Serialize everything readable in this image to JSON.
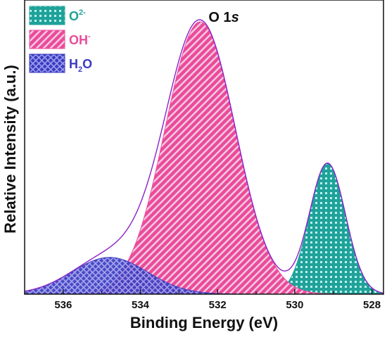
{
  "chart_data": {
    "type": "area",
    "title": "O 1",
    "title_italic": "s",
    "xlabel": "Binding Energy (eV)",
    "ylabel": "Relative Intensity (a.u.)",
    "xlim": [
      537.0,
      527.7
    ],
    "x_reversed": true,
    "ylim": [
      0,
      1.08
    ],
    "x_ticks": [
      536,
      534,
      532,
      530,
      528
    ],
    "x_tick_labels": [
      "536",
      "534",
      "532",
      "530",
      "528"
    ],
    "legend_position": "top-left",
    "series": [
      {
        "name_main": "O",
        "name_sup": "2-",
        "name_sub": "",
        "color": "#1fa29a",
        "pattern": "check",
        "peak": {
          "center": 529.15,
          "height": 0.48,
          "fwhm": 1.1
        },
        "points": [
          [
            531.5,
            0.0
          ],
          [
            530.5,
            0.04
          ],
          [
            530.0,
            0.13
          ],
          [
            529.5,
            0.33
          ],
          [
            529.15,
            0.48
          ],
          [
            528.8,
            0.33
          ],
          [
            528.3,
            0.13
          ],
          [
            527.8,
            0.03
          ]
        ]
      },
      {
        "name_main": "OH",
        "name_sup": "-",
        "name_sub": "",
        "color": "#ea4b9c",
        "pattern": "diagonal",
        "peak": {
          "center": 532.45,
          "height": 1.0,
          "fwhm": 2.15
        },
        "points": [
          [
            534.8,
            0.06
          ],
          [
            534.0,
            0.36
          ],
          [
            533.4,
            0.72
          ],
          [
            532.45,
            1.0
          ],
          [
            531.5,
            0.72
          ],
          [
            530.9,
            0.36
          ],
          [
            530.1,
            0.06
          ]
        ]
      },
      {
        "name_main": "H",
        "name_sup": "",
        "name_sub": "2",
        "name_tail": "O",
        "color": "#3b3bc0",
        "pattern": "crosshatch",
        "peak": {
          "center": 534.8,
          "height": 0.135,
          "fwhm": 2.3
        },
        "points": [
          [
            537.0,
            0.01
          ],
          [
            536.0,
            0.07
          ],
          [
            535.3,
            0.12
          ],
          [
            534.8,
            0.135
          ],
          [
            534.2,
            0.12
          ],
          [
            533.4,
            0.06
          ],
          [
            532.5,
            0.01
          ]
        ]
      }
    ],
    "envelope": {
      "color": "#8a22c8"
    }
  }
}
